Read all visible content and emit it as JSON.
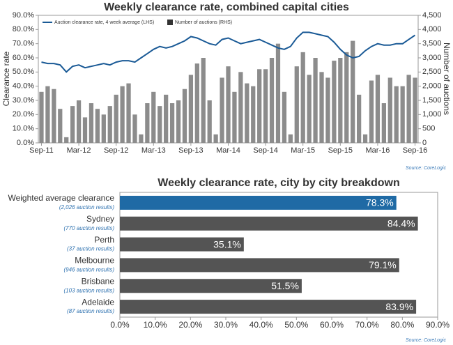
{
  "chart_data": [
    {
      "type": "combo",
      "title": "Weekly clearance rate, combined capital cities",
      "y_label": "Clearance rate",
      "y2_label": "Number of auctions",
      "source": "Source: CoreLogic",
      "legend": "top-left",
      "categories": [
        "Sep-11",
        null,
        null,
        null,
        null,
        null,
        "Mar-12",
        null,
        null,
        null,
        null,
        null,
        "Sep-12",
        null,
        null,
        null,
        null,
        null,
        "Mar-13",
        null,
        null,
        null,
        null,
        null,
        "Sep-13",
        null,
        null,
        null,
        null,
        null,
        "Mar-14",
        null,
        null,
        null,
        null,
        null,
        "Sep-14",
        null,
        null,
        null,
        null,
        null,
        "Mar-15",
        null,
        null,
        null,
        null,
        null,
        "Sep-15",
        null,
        null,
        null,
        null,
        null,
        "Mar-16",
        null,
        null,
        null,
        null,
        null,
        "Sep-16"
      ],
      "series": [
        {
          "name": "Auction clearance rate, 4 week average (LHS)",
          "color": "#1a5a96",
          "kind": "line",
          "axis": "y",
          "values": [
            57,
            56,
            56,
            55,
            50,
            54,
            55,
            53,
            54,
            55,
            56,
            55,
            57,
            58,
            58,
            57,
            60,
            63,
            66,
            68,
            67,
            68,
            70,
            72,
            75,
            74,
            72,
            70,
            69,
            73,
            74,
            72,
            70,
            71,
            72,
            73,
            71,
            69,
            67,
            66,
            68,
            74,
            78,
            78,
            77,
            76,
            75,
            71,
            66,
            62,
            60,
            61,
            65,
            68,
            70,
            69,
            69,
            70,
            70,
            73,
            76
          ]
        },
        {
          "name": "Number of auctions (RHS)",
          "color": "#8c8c8c",
          "kind": "bar",
          "axis": "y2",
          "values": [
            1800,
            2000,
            1900,
            1200,
            200,
            1300,
            1500,
            900,
            1400,
            1200,
            1000,
            1300,
            1700,
            2000,
            2100,
            1000,
            300,
            1400,
            1800,
            1300,
            1700,
            1400,
            1500,
            1900,
            2400,
            2800,
            3000,
            1500,
            300,
            2300,
            2700,
            1800,
            2500,
            2100,
            2000,
            2600,
            2600,
            3000,
            3500,
            1800,
            300,
            2700,
            3200,
            2400,
            3000,
            2500,
            2300,
            2900,
            3000,
            3200,
            3600,
            1700,
            300,
            2200,
            2400,
            1400,
            2300,
            2000,
            2000,
            2400,
            2300
          ]
        }
      ],
      "ylim": [
        0,
        90
      ],
      "yticks": [
        {
          "value": 0,
          "label": "0.0%"
        },
        {
          "value": 10,
          "label": "10.0%"
        },
        {
          "value": 20,
          "label": "20.0%"
        },
        {
          "value": 30,
          "label": "30.0%"
        },
        {
          "value": 40,
          "label": "40.0%"
        },
        {
          "value": 50,
          "label": "50.0%"
        },
        {
          "value": 60,
          "label": "60.0%"
        },
        {
          "value": 70,
          "label": "70.0%"
        },
        {
          "value": 80,
          "label": "80.0%"
        },
        {
          "value": 90,
          "label": "90.0%"
        }
      ],
      "y2lim": [
        0,
        4500
      ],
      "y2ticks": [
        0,
        500,
        {
          "value": 1000,
          "label": "1,000"
        },
        {
          "value": 1500,
          "label": "1,500"
        },
        {
          "value": 2000,
          "label": "2,000"
        },
        {
          "value": 2500,
          "label": "2,500"
        },
        {
          "value": 3000,
          "label": "3,000"
        },
        {
          "value": 3500,
          "label": "3,500"
        },
        {
          "value": 4000,
          "label": "4,000"
        },
        {
          "value": 4500,
          "label": "4,500"
        }
      ]
    },
    {
      "type": "bar",
      "orientation": "horizontal",
      "title": "Weekly clearance rate, city by city breakdown",
      "source": "Source: CoreLogic",
      "categories": [
        "Weighted average clearance",
        "Sydney",
        "Perth",
        "Melbourne",
        "Brisbane",
        "Adelaide"
      ],
      "subcategories": [
        "(2,026 auction results)",
        "(770 auction results)",
        "(37 auction results)",
        "(946 auction results)",
        "(103 auction results)",
        "(87 auction results)"
      ],
      "values": [
        78.3,
        84.4,
        35.1,
        79.1,
        51.5,
        83.9
      ],
      "value_labels": [
        "78.3%",
        "84.4%",
        "35.1%",
        "79.1%",
        "51.5%",
        "83.9%"
      ],
      "colors": [
        "#1f6aa5",
        "#545454",
        "#545454",
        "#545454",
        "#545454",
        "#545454"
      ],
      "xlim": [
        0,
        90
      ],
      "xticks": [
        {
          "value": 0,
          "label": "0.0%"
        },
        {
          "value": 10,
          "label": "10.0%"
        },
        {
          "value": 20,
          "label": "20.0%"
        },
        {
          "value": 30,
          "label": "30.0%"
        },
        {
          "value": 40,
          "label": "40.0%"
        },
        {
          "value": 50,
          "label": "50.0%"
        },
        {
          "value": 60,
          "label": "60.0%"
        },
        {
          "value": 70,
          "label": "70.0%"
        },
        {
          "value": 80,
          "label": "80.0%"
        },
        {
          "value": 90,
          "label": "90.0%"
        }
      ]
    }
  ]
}
